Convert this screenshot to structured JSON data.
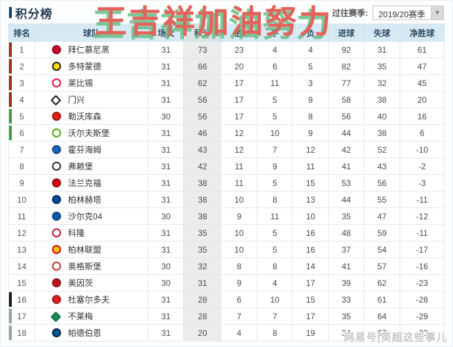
{
  "title": "积分榜",
  "watermark_text": "王吉祥加油努力",
  "site_watermark": "网易号|英超这些事儿",
  "season_selector": {
    "label": "过往赛季:",
    "value": "2019/20赛季"
  },
  "colors": {
    "champions_bar": "#9e2a1e",
    "europa_bar": "#3c9e47",
    "playoff_bar": "#1a1a1a",
    "relegation_bar": "#9aa0a3",
    "header_bg": "#d7eaf4",
    "points_col_bg": "#ececec",
    "watermark_red": "#e2635c",
    "watermark_green_shadow": "#64be87"
  },
  "table": {
    "headers": [
      "排名",
      "球队",
      "场次",
      "积分",
      "胜",
      "平",
      "负",
      "进球",
      "失球",
      "净胜球"
    ],
    "rows": [
      {
        "rank": 1,
        "team": "拜仁慕尼黑",
        "bar": "#9e2a1e",
        "logo": {
          "name": "bayern-munich-logo-icon",
          "bg": "#d10a2f",
          "border": "#8f0020",
          "shape": "circle"
        },
        "cells": [
          31,
          73,
          23,
          4,
          4,
          92,
          31,
          61
        ]
      },
      {
        "rank": 2,
        "team": "多特蒙德",
        "bar": "#9e2a1e",
        "logo": {
          "name": "dortmund-logo-icon",
          "bg": "#ffd900",
          "border": "#222222",
          "shape": "circle"
        },
        "cells": [
          31,
          66,
          20,
          6,
          5,
          82,
          35,
          47
        ]
      },
      {
        "rank": 3,
        "team": "莱比锡",
        "bar": "#9e2a1e",
        "logo": {
          "name": "leipzig-logo-icon",
          "bg": "#ffffff",
          "border": "#dd1340",
          "shape": "circle"
        },
        "cells": [
          31,
          62,
          17,
          11,
          3,
          77,
          32,
          45
        ]
      },
      {
        "rank": 4,
        "team": "门兴",
        "bar": "#9e2a1e",
        "logo": {
          "name": "gladbach-logo-icon",
          "bg": "#ffffff",
          "border": "#111111",
          "shape": "diamond"
        },
        "cells": [
          31,
          56,
          17,
          5,
          9,
          58,
          38,
          20
        ]
      },
      {
        "rank": 5,
        "team": "勒沃库森",
        "bar": "#3c9e47",
        "logo": {
          "name": "leverkusen-logo-icon",
          "bg": "#e32219",
          "border": "#9e1410",
          "shape": "circle"
        },
        "cells": [
          30,
          56,
          17,
          5,
          8,
          56,
          40,
          16
        ]
      },
      {
        "rank": 6,
        "team": "沃尔夫斯堡",
        "bar": "#3c9e47",
        "logo": {
          "name": "wolfsburg-logo-icon",
          "bg": "#ffffff",
          "border": "#51a815",
          "shape": "circle"
        },
        "cells": [
          31,
          46,
          12,
          10,
          9,
          44,
          38,
          6
        ]
      },
      {
        "rank": 7,
        "team": "霍芬海姆",
        "bar": null,
        "logo": {
          "name": "hoffenheim-logo-icon",
          "bg": "#1c63b7",
          "border": "#124a8c",
          "shape": "circle"
        },
        "cells": [
          31,
          43,
          12,
          7,
          12,
          42,
          52,
          -10
        ]
      },
      {
        "rank": 8,
        "team": "弗赖堡",
        "bar": null,
        "logo": {
          "name": "freiburg-logo-icon",
          "bg": "#ffffff",
          "border": "#333333",
          "shape": "circle"
        },
        "cells": [
          31,
          42,
          11,
          9,
          11,
          41,
          43,
          -2
        ]
      },
      {
        "rank": 9,
        "team": "法兰克福",
        "bar": null,
        "logo": {
          "name": "frankfurt-logo-icon",
          "bg": "#e1000f",
          "border": "#8c0a0f",
          "shape": "circle"
        },
        "cells": [
          31,
          38,
          11,
          5,
          15,
          53,
          56,
          -3
        ]
      },
      {
        "rank": 10,
        "team": "柏林赫塔",
        "bar": null,
        "logo": {
          "name": "hertha-berlin-logo-icon",
          "bg": "#004d9e",
          "border": "#00285c",
          "shape": "circle"
        },
        "cells": [
          31,
          38,
          10,
          8,
          13,
          44,
          55,
          -11
        ]
      },
      {
        "rank": 11,
        "team": "沙尔克04",
        "bar": null,
        "logo": {
          "name": "schalke-04-logo-icon",
          "bg": "#0a5caa",
          "border": "#074080",
          "shape": "circle"
        },
        "cells": [
          30,
          38,
          9,
          11,
          10,
          35,
          47,
          -12
        ]
      },
      {
        "rank": 12,
        "team": "科隆",
        "bar": null,
        "logo": {
          "name": "koln-logo-icon",
          "bg": "#ffffff",
          "border": "#c2152a",
          "shape": "circle"
        },
        "cells": [
          31,
          35,
          10,
          5,
          16,
          48,
          59,
          -11
        ]
      },
      {
        "rank": 13,
        "team": "柏林联盟",
        "bar": null,
        "logo": {
          "name": "union-berlin-logo-icon",
          "bg": "#f6c500",
          "border": "#d5041c",
          "shape": "circle"
        },
        "cells": [
          31,
          35,
          10,
          5,
          16,
          37,
          54,
          -17
        ]
      },
      {
        "rank": 14,
        "team": "奥格斯堡",
        "bar": null,
        "logo": {
          "name": "augsburg-logo-icon",
          "bg": "#ffffff",
          "border": "#ba3733",
          "shape": "circle"
        },
        "cells": [
          30,
          32,
          8,
          8,
          14,
          41,
          57,
          -16
        ]
      },
      {
        "rank": 15,
        "team": "美因茨",
        "bar": null,
        "logo": {
          "name": "mainz-logo-icon",
          "bg": "#c3141e",
          "border": "#8e0e16",
          "shape": "circle"
        },
        "cells": [
          30,
          31,
          9,
          4,
          17,
          39,
          62,
          -23
        ]
      },
      {
        "rank": 16,
        "team": "杜塞尔多夫",
        "bar": "#1a1a1a",
        "logo": {
          "name": "dusseldorf-logo-icon",
          "bg": "#da251d",
          "border": "#a21b15",
          "shape": "circle"
        },
        "cells": [
          31,
          28,
          6,
          10,
          15,
          33,
          61,
          -28
        ]
      },
      {
        "rank": 17,
        "team": "不莱梅",
        "bar": "#9aa0a3",
        "logo": {
          "name": "werder-bremen-logo-icon",
          "bg": "#169152",
          "border": "#0d6b3b",
          "shape": "diamond"
        },
        "cells": [
          31,
          28,
          7,
          7,
          17,
          35,
          64,
          -29
        ]
      },
      {
        "rank": 18,
        "team": "帕德伯恩",
        "bar": "#9aa0a3",
        "logo": {
          "name": "paderborn-logo-icon",
          "bg": "#005b9d",
          "border": "#0b1f3a",
          "shape": "circle"
        },
        "cells": [
          31,
          20,
          4,
          8,
          19,
          34,
          67,
          -33
        ]
      }
    ]
  }
}
